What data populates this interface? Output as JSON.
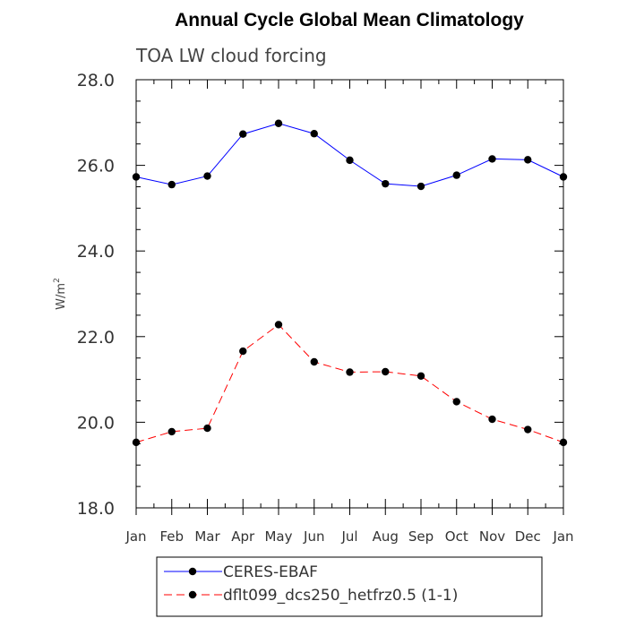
{
  "chart_data": {
    "type": "line",
    "title": "Annual Cycle Global Mean Climatology",
    "subtitle": "TOA LW cloud forcing",
    "ylabel": "W/m",
    "ylabel_sup": "2",
    "xlabel": "",
    "categories": [
      "Jan",
      "Feb",
      "Mar",
      "Apr",
      "May",
      "Jun",
      "Jul",
      "Aug",
      "Sep",
      "Oct",
      "Nov",
      "Dec",
      "Jan"
    ],
    "ylim": [
      18.0,
      28.0
    ],
    "yticks": [
      "18.0",
      "20.0",
      "22.0",
      "24.0",
      "26.0",
      "28.0"
    ],
    "grid": false,
    "legend_position": "bottom",
    "series": [
      {
        "name": "CERES-EBAF",
        "color": "#0000ff",
        "dash": "solid",
        "marker": "circle",
        "values": [
          25.73,
          25.55,
          25.75,
          26.73,
          26.98,
          26.74,
          26.12,
          25.57,
          25.51,
          25.77,
          26.15,
          26.13,
          25.73
        ]
      },
      {
        "name": "dflt099_dcs250_hetfrz0.5 (1-1)",
        "color": "#ff0000",
        "dash": "dashed",
        "marker": "circle",
        "values": [
          19.53,
          19.78,
          19.86,
          21.66,
          22.28,
          21.41,
          21.17,
          21.18,
          21.08,
          20.48,
          20.07,
          19.83,
          19.53
        ]
      }
    ]
  }
}
